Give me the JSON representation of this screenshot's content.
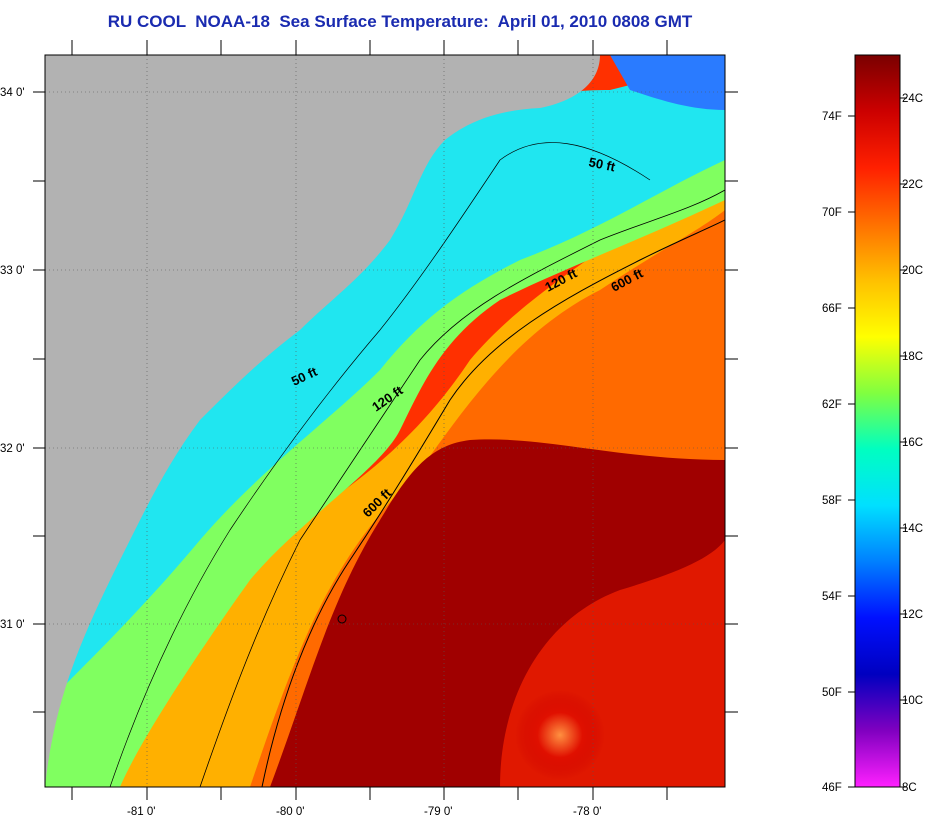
{
  "title": "RU COOL  NOAA-18  Sea Surface Temperature:  April 01, 2010 0808 GMT",
  "map": {
    "latitude_labels": [
      {
        "value": 34,
        "label": "34 0'"
      },
      {
        "value": 33,
        "label": "33 0'"
      },
      {
        "value": 32,
        "label": "32 0'"
      },
      {
        "value": 31,
        "label": "31 0'"
      }
    ],
    "longitude_labels": [
      {
        "value": -81,
        "label": "-81 0'"
      },
      {
        "value": -80,
        "label": "-80 0'"
      },
      {
        "value": -79,
        "label": "-79 0'"
      },
      {
        "value": -78,
        "label": "-78 0'"
      }
    ],
    "depth_labels": [
      "50 ft",
      "50 ft",
      "120 ft",
      "120 ft",
      "600 ft",
      "600 ft"
    ],
    "colors": {
      "land": "#b2b2b2",
      "warm_water": "#8b0000",
      "gulf_stream_edge": "#ff4000",
      "shelf_water": "#00e0ff",
      "mid_shelf": "#80ff80"
    }
  },
  "colorbar": {
    "fahrenheit_labels": [
      "74F",
      "70F",
      "66F",
      "62F",
      "58F",
      "54F",
      "50F",
      "46F"
    ],
    "celsius_labels": [
      "24C",
      "22C",
      "20C",
      "18C",
      "16C",
      "14C",
      "12C",
      "10C",
      "8C"
    ],
    "stops": [
      "#7a0000",
      "#cc0000",
      "#ff2000",
      "#ff7000",
      "#ffc000",
      "#ffff00",
      "#80ff40",
      "#00ffc0",
      "#00e0ff",
      "#0080ff",
      "#0010ff",
      "#0000c0",
      "#8000c0",
      "#ff20ff"
    ]
  }
}
